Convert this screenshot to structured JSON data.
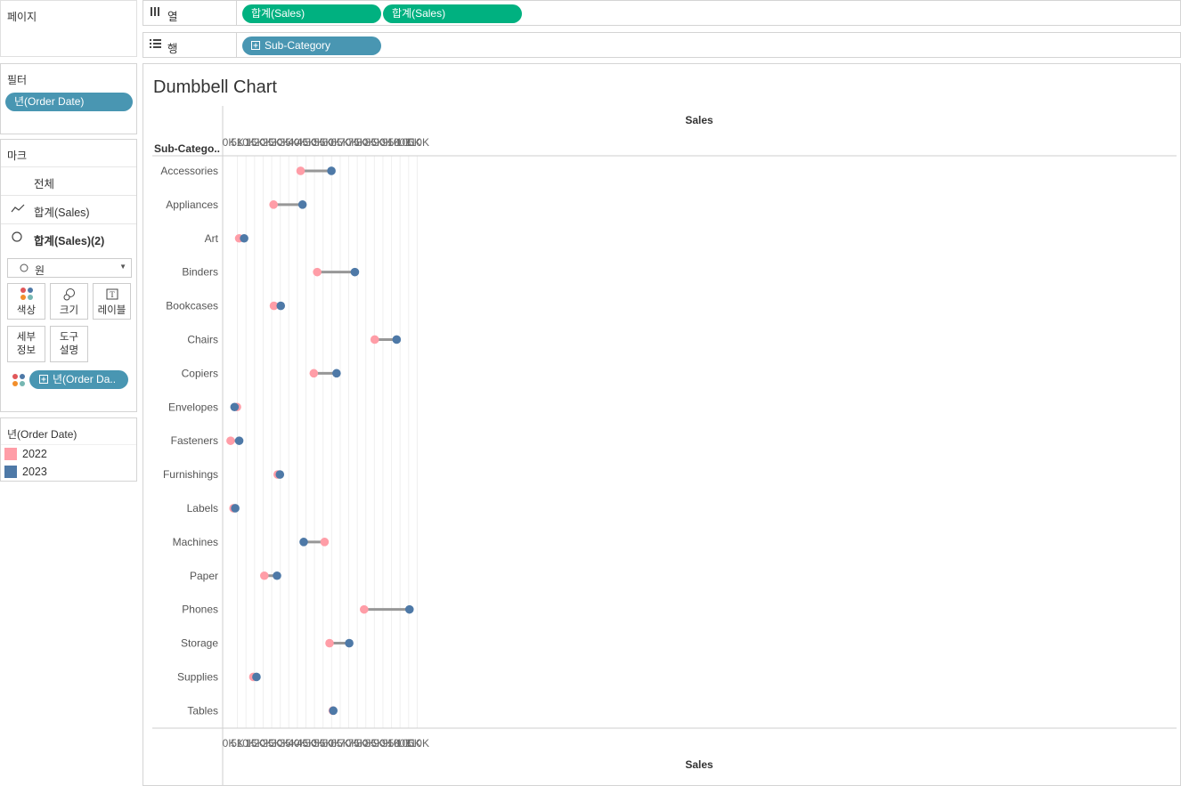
{
  "pages": {
    "title": "페이지"
  },
  "shelves": {
    "columns": {
      "label": "열",
      "icon": "columns-icon",
      "pills": [
        "합계(Sales)",
        "합계(Sales)"
      ]
    },
    "rows": {
      "label": "행",
      "icon": "rows-icon",
      "pills": [
        "Sub-Category"
      ]
    }
  },
  "filters": {
    "title": "필터",
    "pill": "년(Order Date)"
  },
  "marks": {
    "title": "마크",
    "rows": [
      {
        "label": "전체",
        "icon": ""
      },
      {
        "label": "합계(Sales)",
        "icon": "line-icon"
      },
      {
        "label": "합계(Sales)(2)",
        "icon": "circle-icon"
      }
    ],
    "mark_type": "원",
    "buttons": {
      "color": "색상",
      "size": "크기",
      "label": "레이블",
      "detail": [
        "세부",
        "정보"
      ],
      "tooltip": [
        "도구",
        "설명"
      ]
    },
    "color_pill": "년(Order Da.."
  },
  "legend": {
    "title": "년(Order Date)",
    "items": [
      {
        "label": "2022",
        "color": "#ff9da7"
      },
      {
        "label": "2023",
        "color": "#4e79a7"
      }
    ]
  },
  "chart_data": {
    "type": "dumbbell",
    "title": "Dumbbell Chart",
    "xlabel": "Sales",
    "ylabel": "Sub-Catego..",
    "xlim": [
      0,
      110000
    ],
    "xticks": [
      "0K",
      "5K",
      "10K",
      "15K",
      "20K",
      "25K",
      "30K",
      "35K",
      "40K",
      "45K",
      "50K",
      "55K",
      "60K",
      "65K",
      "70K",
      "75K",
      "80K",
      "85K",
      "90K",
      "95K",
      "100K",
      "105K",
      "110K"
    ],
    "categories": [
      "Accessories",
      "Appliances",
      "Art",
      "Binders",
      "Bookcases",
      "Chairs",
      "Copiers",
      "Envelopes",
      "Fasteners",
      "Furnishings",
      "Labels",
      "Machines",
      "Paper",
      "Phones",
      "Storage",
      "Supplies",
      "Tables"
    ],
    "series": [
      {
        "name": "2022",
        "color": "#ff9da7",
        "values": [
          41900,
          26100,
          6000,
          51600,
          26300,
          85200,
          49600,
          4700,
          1000,
          28500,
          2700,
          55900,
          20700,
          79000,
          58800,
          14300,
          60700
        ]
      },
      {
        "name": "2023",
        "color": "#4e79a7",
        "values": [
          59900,
          43000,
          8900,
          73600,
          30300,
          98000,
          62900,
          3300,
          6000,
          29800,
          3700,
          43700,
          28100,
          105500,
          70300,
          16100,
          61000
        ]
      }
    ],
    "connector_color": "#979797",
    "grid": true
  }
}
